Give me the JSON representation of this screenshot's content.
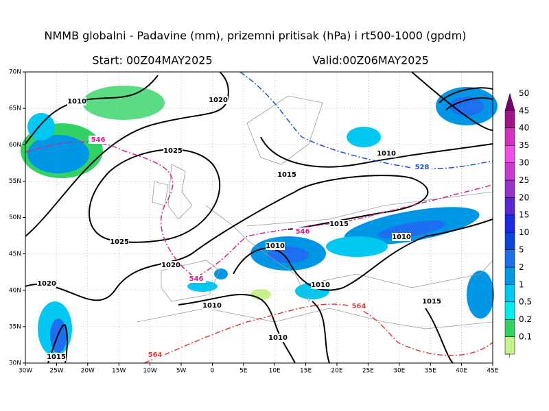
{
  "header": {
    "title": "NMMB globalni - Padavine (mm), prizemni pritisak (hPa) i rt500-1000 (gpdm)",
    "start": "Start: 00Z04MAY2025",
    "valid": "Valid:00Z06MAY2025"
  },
  "map": {
    "xlim": [
      -30,
      45
    ],
    "ylim": [
      30,
      70
    ],
    "xticks": [
      {
        "value": -30,
        "label": "30W"
      },
      {
        "value": -25,
        "label": "25W"
      },
      {
        "value": -20,
        "label": "20W"
      },
      {
        "value": -15,
        "label": "15W"
      },
      {
        "value": -10,
        "label": "10W"
      },
      {
        "value": -5,
        "label": "5W"
      },
      0,
      {
        "value": 5,
        "label": "5E"
      },
      {
        "value": 10,
        "label": "10E"
      },
      {
        "value": 15,
        "label": "15E"
      },
      {
        "value": 20,
        "label": "20E"
      },
      {
        "value": 25,
        "label": "25E"
      },
      {
        "value": 30,
        "label": "30E"
      },
      {
        "value": 35,
        "label": "35E"
      },
      {
        "value": 40,
        "label": "40E"
      },
      {
        "value": 45,
        "label": "45E"
      }
    ],
    "yticks": [
      {
        "value": 30,
        "label": "30N"
      },
      {
        "value": 35,
        "label": "35N"
      },
      {
        "value": 40,
        "label": "40N"
      },
      {
        "value": 45,
        "label": "45N"
      },
      {
        "value": 50,
        "label": "50N"
      },
      {
        "value": 55,
        "label": "55N"
      },
      {
        "value": 60,
        "label": "60N"
      },
      {
        "value": 65,
        "label": "65N"
      },
      {
        "value": 70,
        "label": "70N"
      }
    ],
    "grid": true,
    "contour_labels": [
      {
        "text": "1010",
        "color": "#000000"
      },
      {
        "text": "1020",
        "color": "#000000"
      },
      {
        "text": "1025",
        "color": "#000000"
      },
      {
        "text": "1015",
        "color": "#000000"
      },
      {
        "text": "1010",
        "color": "#000000"
      },
      {
        "text": "528",
        "color": "#1e50dc"
      },
      {
        "text": "546",
        "color": "#e01e8c"
      },
      {
        "text": "1025",
        "color": "#000000"
      },
      {
        "text": "1020",
        "color": "#000000"
      },
      {
        "text": "1020",
        "color": "#000000"
      },
      {
        "text": "1015",
        "color": "#000000"
      },
      {
        "text": "546",
        "color": "#e01e8c"
      },
      {
        "text": "1015",
        "color": "#000000"
      },
      {
        "text": "1010",
        "color": "#000000"
      },
      {
        "text": "1010",
        "color": "#000000"
      },
      {
        "text": "1010",
        "color": "#000000"
      },
      {
        "text": "1010",
        "color": "#000000"
      },
      {
        "text": "546",
        "color": "#e01e8c"
      },
      {
        "text": "564",
        "color": "#e03c3c"
      },
      {
        "text": "564",
        "color": "#e03c3c"
      },
      {
        "text": "1015",
        "color": "#000000"
      },
      {
        "text": "1010",
        "color": "#000000"
      }
    ]
  },
  "colorbar": {
    "levels": [
      0.1,
      0.2,
      0.5,
      1,
      2,
      5,
      10,
      15,
      20,
      25,
      30,
      35,
      40,
      45,
      50
    ],
    "colors": [
      "#c8f08c",
      "#32d264",
      "#00f0f0",
      "#00c8f0",
      "#0096e6",
      "#1e6ef0",
      "#0a46dc",
      "#1e28e6",
      "#5a28d2",
      "#9632c8",
      "#c83cd2",
      "#f050e6",
      "#d232be",
      "#a0148c",
      "#78006e"
    ]
  }
}
